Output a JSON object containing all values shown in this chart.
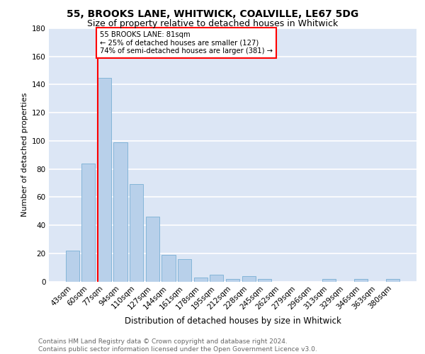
{
  "title": "55, BROOKS LANE, WHITWICK, COALVILLE, LE67 5DG",
  "subtitle": "Size of property relative to detached houses in Whitwick",
  "xlabel": "Distribution of detached houses by size in Whitwick",
  "ylabel": "Number of detached properties",
  "categories": [
    "43sqm",
    "60sqm",
    "77sqm",
    "94sqm",
    "110sqm",
    "127sqm",
    "144sqm",
    "161sqm",
    "178sqm",
    "195sqm",
    "212sqm",
    "228sqm",
    "245sqm",
    "262sqm",
    "279sqm",
    "296sqm",
    "313sqm",
    "329sqm",
    "346sqm",
    "363sqm",
    "380sqm"
  ],
  "values": [
    22,
    84,
    145,
    99,
    69,
    46,
    19,
    16,
    3,
    5,
    2,
    4,
    2,
    0,
    0,
    0,
    2,
    0,
    2,
    0,
    2
  ],
  "bar_color": "#b8d0ea",
  "bar_edgecolor": "#7aafd4",
  "vline_color": "red",
  "annotation_text": "55 BROOKS LANE: 81sqm\n← 25% of detached houses are smaller (127)\n74% of semi-detached houses are larger (381) →",
  "annotation_box_edgecolor": "red",
  "annotation_box_facecolor": "white",
  "ylim": [
    0,
    180
  ],
  "yticks": [
    0,
    20,
    40,
    60,
    80,
    100,
    120,
    140,
    160,
    180
  ],
  "background_color": "#dce6f5",
  "grid_color": "white",
  "footer_text": "Contains HM Land Registry data © Crown copyright and database right 2024.\nContains public sector information licensed under the Open Government Licence v3.0.",
  "title_fontsize": 10,
  "subtitle_fontsize": 9,
  "xlabel_fontsize": 8.5,
  "ylabel_fontsize": 8,
  "tick_fontsize": 7.5,
  "footer_fontsize": 6.5,
  "vline_bar_index": 2,
  "bar_width": 0.85
}
